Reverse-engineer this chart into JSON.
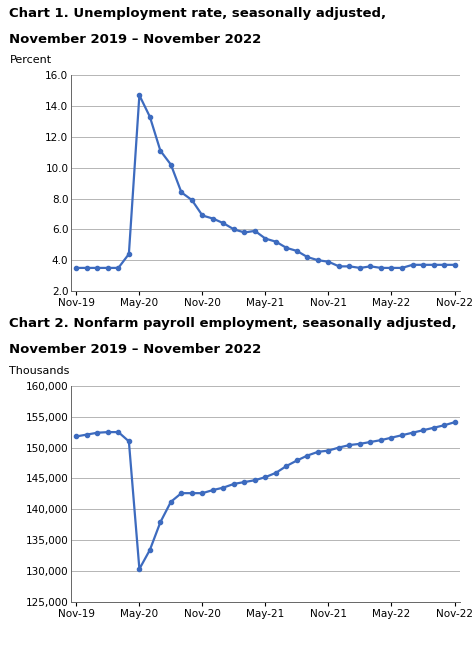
{
  "chart1_title_line1": "Chart 1. Unemployment rate, seasonally adjusted,",
  "chart1_title_line2": "November 2019 – November 2022",
  "chart1_ylabel": "Percent",
  "chart1_ylim": [
    2.0,
    16.0
  ],
  "chart1_yticks": [
    2.0,
    4.0,
    6.0,
    8.0,
    10.0,
    12.0,
    14.0,
    16.0
  ],
  "chart1_data": [
    3.5,
    3.5,
    3.5,
    3.5,
    3.5,
    4.4,
    14.7,
    13.3,
    11.1,
    10.2,
    8.4,
    7.9,
    6.9,
    6.7,
    6.4,
    6.0,
    5.8,
    5.9,
    5.4,
    5.2,
    4.8,
    4.6,
    4.2,
    4.0,
    3.9,
    3.6,
    3.6,
    3.5,
    3.6,
    3.5,
    3.5,
    3.5,
    3.7,
    3.7,
    3.7,
    3.7,
    3.7
  ],
  "chart2_title_line1": "Chart 2. Nonfarm payroll employment, seasonally adjusted,",
  "chart2_title_line2": "November 2019 – November 2022",
  "chart2_ylabel": "Thousands",
  "chart2_ylim": [
    125000,
    160000
  ],
  "chart2_yticks": [
    125000,
    130000,
    135000,
    140000,
    145000,
    150000,
    155000,
    160000
  ],
  "chart2_data": [
    151800,
    152100,
    152400,
    152500,
    152500,
    151000,
    130300,
    133400,
    137900,
    141200,
    142600,
    142600,
    142600,
    143100,
    143500,
    144100,
    144400,
    144700,
    145200,
    145900,
    147000,
    147900,
    148700,
    149300,
    149500,
    150000,
    150400,
    150600,
    150900,
    151200,
    151600,
    152000,
    152400,
    152800,
    153200,
    153600,
    154100
  ],
  "line_color": "#3d6bbf",
  "marker": "o",
  "marker_size": 3.0,
  "line_width": 1.6,
  "bg_color": "#ffffff",
  "grid_color": "#aaaaaa",
  "title_fontsize": 9.5,
  "label_fontsize": 8.0,
  "tick_fontsize": 7.5,
  "x_tick_labels": [
    "Nov-19",
    "May-20",
    "Nov-20",
    "May-21",
    "Nov-21",
    "May-22",
    "Nov-22"
  ],
  "x_tick_positions": [
    0,
    6,
    12,
    18,
    24,
    30,
    36
  ]
}
